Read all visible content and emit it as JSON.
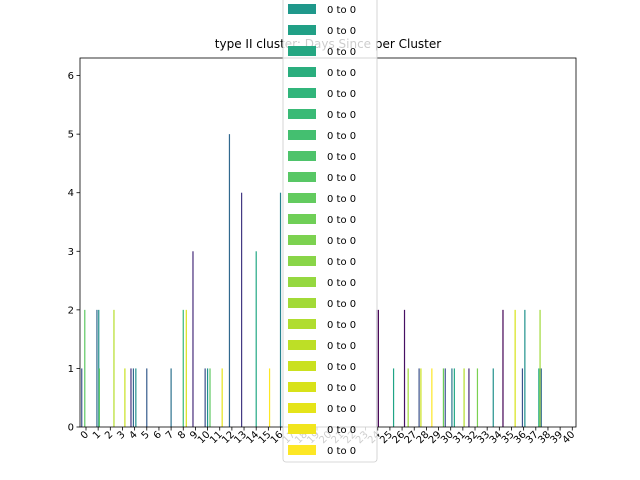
{
  "chart_data": {
    "type": "bar",
    "title": "type II cluster: Days Since per Cluster",
    "xlabel": "",
    "ylabel": "",
    "ylim": [
      0,
      6.3
    ],
    "yticks": [
      0,
      1,
      2,
      3,
      4,
      5,
      6
    ],
    "categories": [
      "0",
      "1",
      "2",
      "3",
      "4",
      "5",
      "6",
      "7",
      "8",
      "9",
      "10",
      "11",
      "12",
      "13",
      "14",
      "15",
      "16",
      "17",
      "18",
      "19",
      "20",
      "21",
      "22",
      "23",
      "24",
      "25",
      "26",
      "27",
      "28",
      "29",
      "30",
      "31",
      "32",
      "33",
      "34",
      "35",
      "36",
      "37",
      "38",
      "39",
      "40"
    ],
    "grid": false,
    "legend_placement": "top-center (overlapping plot)",
    "visible_bars": [
      {
        "x": 0,
        "offset": -0.35,
        "value": 1,
        "color": "#3b528b"
      },
      {
        "x": 0,
        "offset": -0.1,
        "value": 2,
        "color": "#5ec962"
      },
      {
        "x": 1,
        "offset": -0.1,
        "value": 2,
        "color": "#31688e"
      },
      {
        "x": 1,
        "offset": 0.05,
        "value": 2,
        "color": "#21918c"
      },
      {
        "x": 1,
        "offset": 0.1,
        "value": 1,
        "color": "#5ec962"
      },
      {
        "x": 2,
        "offset": 0.3,
        "value": 2,
        "color": "#b5de2b"
      },
      {
        "x": 3,
        "offset": 0.2,
        "value": 1,
        "color": "#c8e020"
      },
      {
        "x": 4,
        "offset": -0.3,
        "value": 1,
        "color": "#46327e"
      },
      {
        "x": 4,
        "offset": -0.1,
        "value": 1,
        "color": "#31688e"
      },
      {
        "x": 4,
        "offset": 0.1,
        "value": 1,
        "color": "#21918c"
      },
      {
        "x": 5,
        "offset": 0.0,
        "value": 1,
        "color": "#365c8d"
      },
      {
        "x": 7,
        "offset": 0.0,
        "value": 1,
        "color": "#2c728e"
      },
      {
        "x": 8,
        "offset": 0.0,
        "value": 2,
        "color": "#35b779"
      },
      {
        "x": 8,
        "offset": 0.25,
        "value": 2,
        "color": "#d8e219"
      },
      {
        "x": 9,
        "offset": -0.2,
        "value": 3,
        "color": "#472d7b"
      },
      {
        "x": 10,
        "offset": -0.2,
        "value": 1,
        "color": "#3b528b"
      },
      {
        "x": 10,
        "offset": 0.0,
        "value": 1,
        "color": "#21918c"
      },
      {
        "x": 10,
        "offset": 0.2,
        "value": 1,
        "color": "#5ec962"
      },
      {
        "x": 11,
        "offset": 0.2,
        "value": 1,
        "color": "#e5e419"
      },
      {
        "x": 12,
        "offset": -0.2,
        "value": 5,
        "color": "#31688e"
      },
      {
        "x": 13,
        "offset": -0.2,
        "value": 4,
        "color": "#443983"
      },
      {
        "x": 14,
        "offset": 0.0,
        "value": 3,
        "color": "#22a884"
      },
      {
        "x": 15,
        "offset": 0.1,
        "value": 1,
        "color": "#fde725"
      },
      {
        "x": 16,
        "offset": 0.0,
        "value": 4,
        "color": "#26828e"
      },
      {
        "x": 24,
        "offset": -0.1,
        "value": 2,
        "color": "#482475"
      },
      {
        "x": 24,
        "offset": 0.05,
        "value": 2,
        "color": "#440154"
      },
      {
        "x": 25,
        "offset": 0.3,
        "value": 1,
        "color": "#20a486"
      },
      {
        "x": 26,
        "offset": 0.2,
        "value": 2,
        "color": "#471063"
      },
      {
        "x": 26,
        "offset": 0.5,
        "value": 1,
        "color": "#a0da39"
      },
      {
        "x": 27,
        "offset": 0.4,
        "value": 1,
        "color": "#3b528b"
      },
      {
        "x": 27,
        "offset": 0.55,
        "value": 1,
        "color": "#cae11f"
      },
      {
        "x": 28,
        "offset": 0.45,
        "value": 1,
        "color": "#fde725"
      },
      {
        "x": 29,
        "offset": 0.4,
        "value": 1,
        "color": "#6ece58"
      },
      {
        "x": 29,
        "offset": 0.55,
        "value": 1,
        "color": "#3b528b"
      },
      {
        "x": 30,
        "offset": 0.1,
        "value": 1,
        "color": "#2a788e"
      },
      {
        "x": 30,
        "offset": 0.3,
        "value": 1,
        "color": "#22a884"
      },
      {
        "x": 31,
        "offset": 0.1,
        "value": 1,
        "color": "#b5de2b"
      },
      {
        "x": 31,
        "offset": 0.5,
        "value": 1,
        "color": "#482878"
      },
      {
        "x": 32,
        "offset": 0.2,
        "value": 1,
        "color": "#7ad151"
      },
      {
        "x": 33,
        "offset": 0.5,
        "value": 1,
        "color": "#21918c"
      },
      {
        "x": 34,
        "offset": 0.3,
        "value": 2,
        "color": "#440154"
      },
      {
        "x": 35,
        "offset": 0.3,
        "value": 2,
        "color": "#d8e219"
      },
      {
        "x": 36,
        "offset": -0.1,
        "value": 1,
        "color": "#3b528b"
      },
      {
        "x": 36,
        "offset": 0.1,
        "value": 2,
        "color": "#21918c"
      },
      {
        "x": 37,
        "offset": 0.25,
        "value": 1,
        "color": "#22a884"
      },
      {
        "x": 37,
        "offset": 0.35,
        "value": 2,
        "color": "#a0da39"
      },
      {
        "x": 37,
        "offset": 0.45,
        "value": 1,
        "color": "#31688e"
      }
    ],
    "legend": {
      "entries": [
        {
          "label": "0 to 0",
          "color": "#1f988b"
        },
        {
          "label": "0 to 0",
          "color": "#21a086"
        },
        {
          "label": "0 to 0",
          "color": "#25a782"
        },
        {
          "label": "0 to 0",
          "color": "#2aae7e"
        },
        {
          "label": "0 to 0",
          "color": "#31b57b"
        },
        {
          "label": "0 to 0",
          "color": "#3aba76"
        },
        {
          "label": "0 to 0",
          "color": "#44bf70"
        },
        {
          "label": "0 to 0",
          "color": "#4ec36b"
        },
        {
          "label": "0 to 0",
          "color": "#58c765"
        },
        {
          "label": "0 to 0",
          "color": "#63cb5f"
        },
        {
          "label": "0 to 0",
          "color": "#6fcf57"
        },
        {
          "label": "0 to 0",
          "color": "#7cd250"
        },
        {
          "label": "0 to 0",
          "color": "#89d548"
        },
        {
          "label": "0 to 0",
          "color": "#95d840"
        },
        {
          "label": "0 to 0",
          "color": "#a2da37"
        },
        {
          "label": "0 to 0",
          "color": "#b0dd2f"
        },
        {
          "label": "0 to 0",
          "color": "#bddf26"
        },
        {
          "label": "0 to 0",
          "color": "#cae11f"
        },
        {
          "label": "0 to 0",
          "color": "#d8e219"
        },
        {
          "label": "0 to 0",
          "color": "#e5e419"
        },
        {
          "label": "0 to 0",
          "color": "#f1e51d"
        },
        {
          "label": "0 to 0",
          "color": "#fde725"
        }
      ]
    }
  }
}
